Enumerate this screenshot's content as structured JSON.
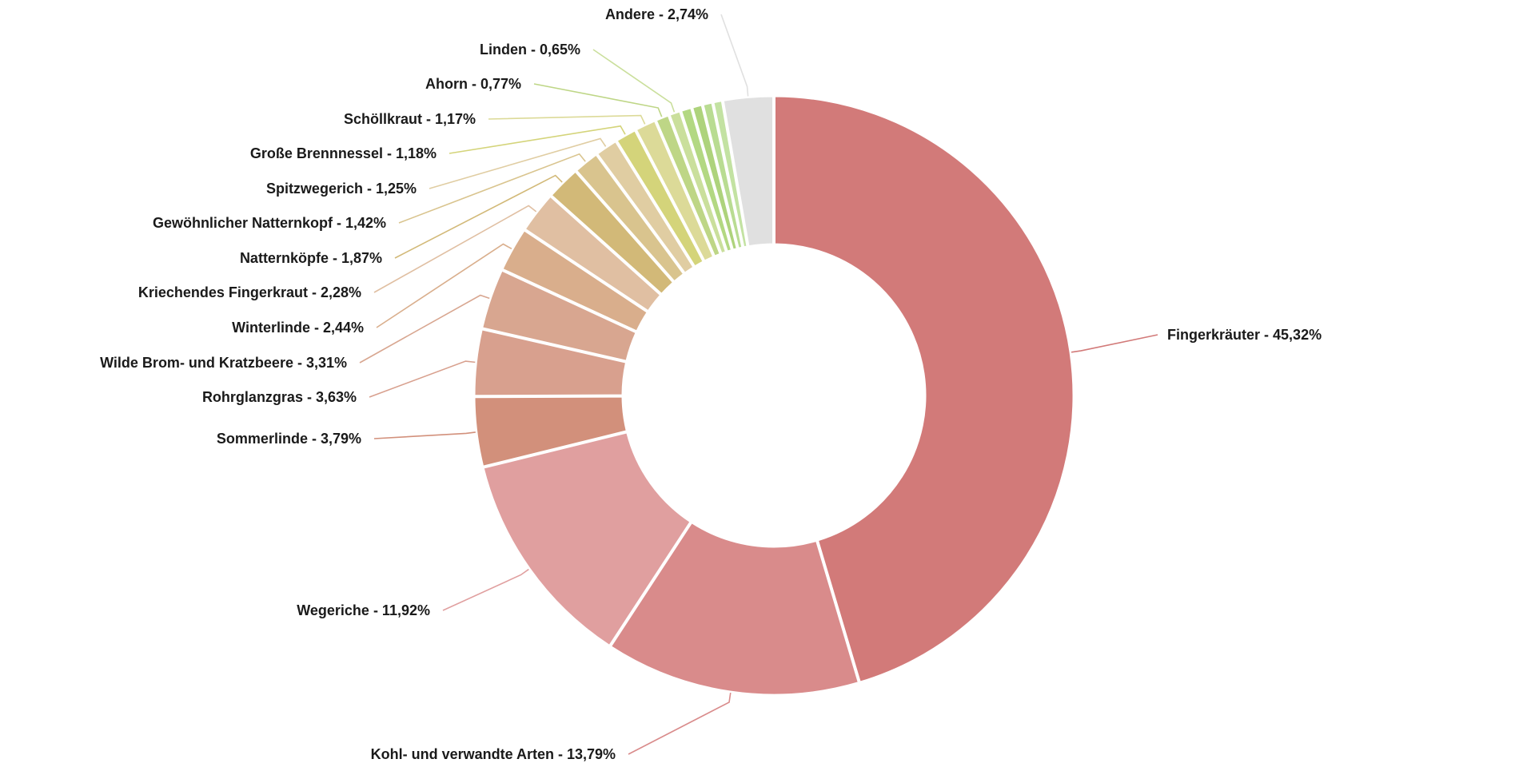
{
  "chart_data": {
    "type": "pie",
    "donut": true,
    "title": "",
    "label_separator": " - ",
    "slices": [
      {
        "label": "Fingerkräuter",
        "value_text": "45,32%",
        "value": 45.32,
        "color": "#d27a79"
      },
      {
        "label": "Kohl- und verwandte Arten",
        "value_text": "13,79%",
        "value": 13.79,
        "color": "#d98b8b"
      },
      {
        "label": "Wegeriche",
        "value_text": "11,92%",
        "value": 11.92,
        "color": "#e09f9f"
      },
      {
        "label": "Sommerlinde",
        "value_text": "3,79%",
        "value": 3.79,
        "color": "#d2907b"
      },
      {
        "label": "Rohrglanzgras",
        "value_text": "3,63%",
        "value": 3.63,
        "color": "#d8a08e"
      },
      {
        "label": "Wilde Brom- und Kratzbeere",
        "value_text": "3,31%",
        "value": 3.31,
        "color": "#d8a690"
      },
      {
        "label": "Winterlinde",
        "value_text": "2,44%",
        "value": 2.44,
        "color": "#d9ae8c"
      },
      {
        "label": "Kriechendes Fingerkraut",
        "value_text": "2,28%",
        "value": 2.28,
        "color": "#e0bfa2"
      },
      {
        "label": "Natternköpfe",
        "value_text": "1,87%",
        "value": 1.87,
        "color": "#d2b978"
      },
      {
        "label": "Gewöhnlicher Natternkopf",
        "value_text": "1,42%",
        "value": 1.42,
        "color": "#d9c48e"
      },
      {
        "label": "Spitzwegerich",
        "value_text": "1,25%",
        "value": 1.25,
        "color": "#e0cda2"
      },
      {
        "label": "Große Brennnessel",
        "value_text": "1,18%",
        "value": 1.18,
        "color": "#d4d47a"
      },
      {
        "label": "Schöllkraut",
        "value_text": "1,17%",
        "value": 1.17,
        "color": "#dcda98"
      },
      {
        "label": "Ahorn",
        "value_text": "0,77%",
        "value": 0.77,
        "color": "#bed686"
      },
      {
        "label": "Linden",
        "value_text": "0,65%",
        "value": 0.65,
        "color": "#cadf9c"
      },
      {
        "label": "",
        "value_text": "",
        "value": 0.62,
        "color": "#b3d882"
      },
      {
        "label": "",
        "value_text": "",
        "value": 0.59,
        "color": "#aed37c"
      },
      {
        "label": "",
        "value_text": "",
        "value": 0.56,
        "color": "#b9dc92"
      },
      {
        "label": "",
        "value_text": "",
        "value": 0.53,
        "color": "#c3e2a2"
      },
      {
        "label": "Andere",
        "value_text": "2,74%",
        "value": 2.74,
        "color": "#e0e0e0"
      }
    ]
  }
}
